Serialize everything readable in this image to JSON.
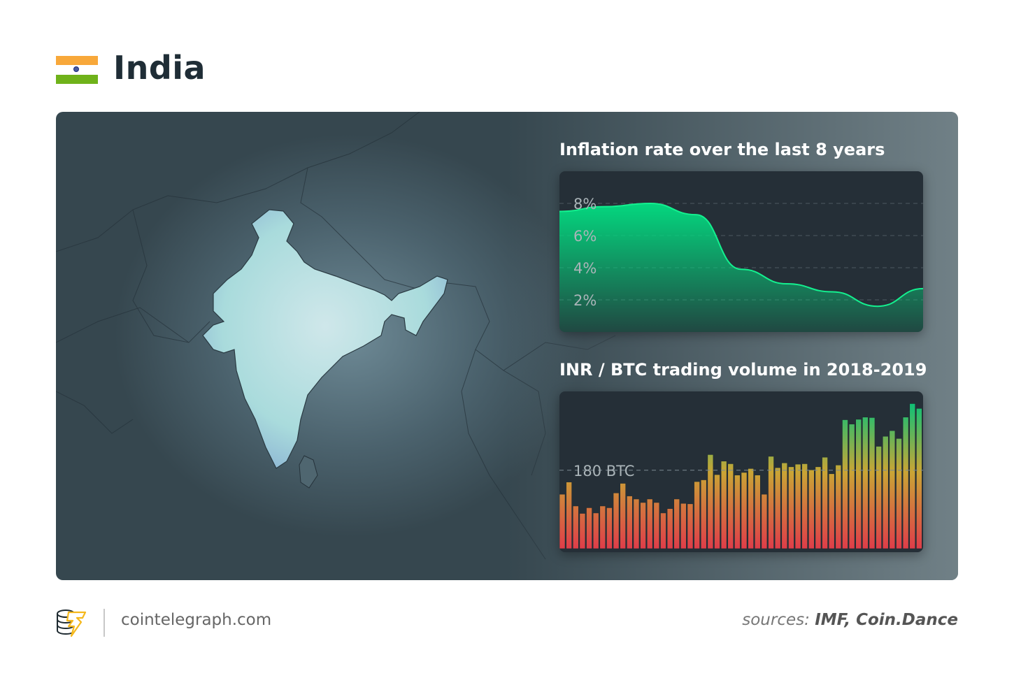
{
  "header": {
    "title": "India",
    "flag_icon": "india-flag-icon"
  },
  "colors": {
    "saffron": "#f8a83a",
    "green": "#6fb21a",
    "chart_green": "#04d77f",
    "bar_red": "#e0384a",
    "bar_orange": "#d9a03a"
  },
  "chart_data": [
    {
      "type": "area",
      "title": "Inflation rate over the last 8 years",
      "ylabel": "",
      "xlabel": "",
      "ylim": [
        0,
        10
      ],
      "yticks": [
        "2%",
        "4%",
        "6%",
        "8%"
      ],
      "ytick_values": [
        2,
        4,
        6,
        8
      ],
      "grid": true,
      "values": [
        7.5,
        7.8,
        8.0,
        7.3,
        3.9,
        3.0,
        2.5,
        1.6,
        2.7
      ]
    },
    {
      "type": "bar",
      "title": "INR / BTC trading volume in 2018-2019",
      "reference_line": {
        "value": 180,
        "label": "180 BTC"
      },
      "ylim": [
        0,
        361
      ],
      "values": [
        125,
        153,
        98,
        81,
        94,
        82,
        98,
        94,
        128,
        150,
        121,
        114,
        106,
        114,
        106,
        82,
        92,
        114,
        104,
        103,
        154,
        158,
        216,
        170,
        201,
        195,
        169,
        175,
        184,
        169,
        125,
        212,
        186,
        197,
        188,
        194,
        195,
        181,
        188,
        210,
        172,
        192,
        296,
        286,
        297,
        302,
        301,
        235,
        258,
        271,
        253,
        302,
        333,
        322
      ]
    }
  ],
  "footer": {
    "site": "cointelegraph.com",
    "sources_label": "sources:",
    "sources": "IMF, Coin.Dance"
  }
}
